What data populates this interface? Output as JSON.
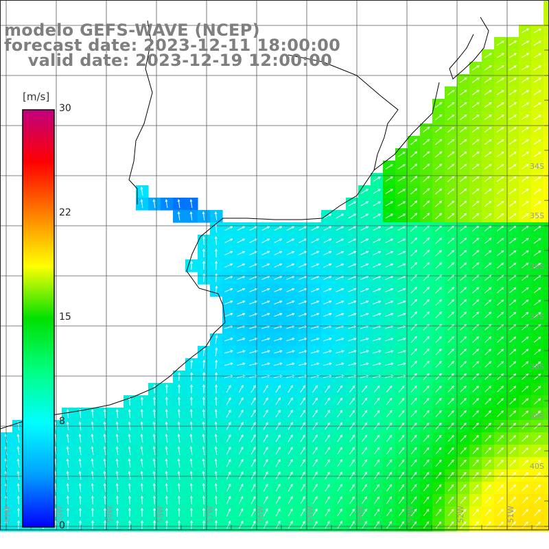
{
  "title": {
    "line1": "modelo GEFS-WAVE (NCEP)",
    "line2": "forecast date: 2023-12-11 18:00:00",
    "line3": "    valid date: 2023-12-19 12:00:00"
  },
  "colorbar": {
    "units": "[m/s]",
    "ticks": [
      "30",
      "22",
      "15",
      "8",
      "0"
    ],
    "tick_values": [
      30,
      22,
      15,
      8,
      0
    ],
    "min": 0,
    "max": 30,
    "colors": [
      "#0000ff",
      "#00a0ff",
      "#00ffff",
      "#00ff80",
      "#00e000",
      "#ffff00",
      "#ff8000",
      "#ff0000",
      "#c0007f"
    ]
  },
  "lat_labels": [
    "34S",
    "35S",
    "36S",
    "37S",
    "38S",
    "39S",
    "40S"
  ],
  "lon_labels": [
    "61W",
    "60W",
    "59W",
    "58W",
    "57W",
    "56W",
    "55W",
    "54W",
    "53W",
    "52W",
    "51W"
  ],
  "colors": {
    "land": "#ffffff",
    "coast": "#000000",
    "grid": "#5a5a5a",
    "arrow": "#ffffff",
    "title": "#7f7f7f"
  }
}
